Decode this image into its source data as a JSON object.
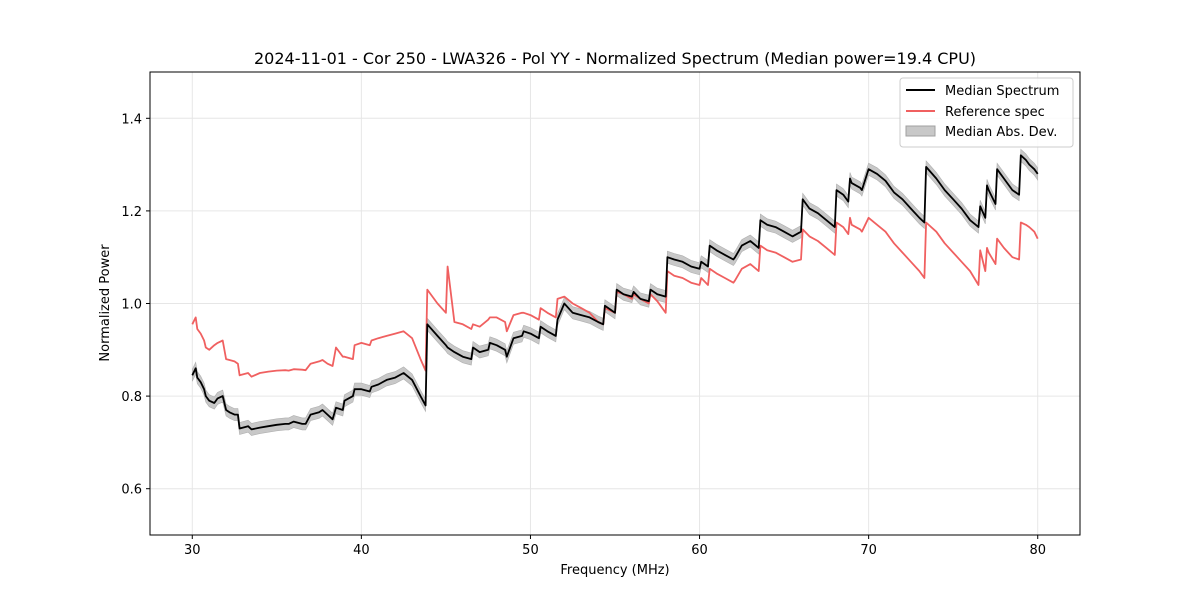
{
  "chart_data": {
    "type": "line",
    "title": "2024-11-01 - Cor 250 - LWA326 - Pol YY - Normalized Spectrum (Median power=19.4 CPU)",
    "xlabel": "Frequency (MHz)",
    "ylabel": "Normalized Power",
    "xlim": [
      27.5,
      82.5
    ],
    "ylim": [
      0.5,
      1.5
    ],
    "xticks": [
      30,
      40,
      50,
      60,
      70,
      80
    ],
    "yticks": [
      0.6,
      0.8,
      1.0,
      1.2,
      1.4
    ],
    "xtick_labels": [
      "30",
      "40",
      "50",
      "60",
      "70",
      "80"
    ],
    "ytick_labels": [
      "0.6",
      "0.8",
      "1.0",
      "1.2",
      "1.4"
    ],
    "grid": true,
    "legend_position": "top-right",
    "mad_halfwidth": 0.013,
    "colors": {
      "median": "#000000",
      "reference": "#f06060",
      "mad": "#c8c8c8",
      "grid": "#e6e6e6"
    },
    "series": [
      {
        "name": "Median Spectrum",
        "x": [
          30.0,
          30.2,
          30.3,
          30.5,
          30.7,
          30.8,
          31.0,
          31.3,
          31.5,
          31.8,
          32.0,
          32.2,
          32.5,
          32.7,
          32.8,
          33.3,
          33.5,
          34.0,
          34.5,
          35.0,
          35.5,
          35.7,
          36.0,
          36.5,
          36.7,
          37.0,
          37.5,
          37.7,
          38.0,
          38.3,
          38.5,
          38.9,
          39.0,
          39.5,
          39.6,
          40.0,
          40.5,
          40.6,
          41.0,
          41.5,
          42.0,
          42.5,
          43.0,
          43.5,
          43.8,
          43.9,
          44.5,
          45.0,
          45.1,
          45.5,
          46.0,
          46.5,
          46.6,
          47.0,
          47.5,
          47.6,
          48.0,
          48.5,
          48.6,
          49.0,
          49.5,
          49.6,
          50.0,
          50.5,
          50.6,
          51.0,
          51.5,
          51.6,
          52.0,
          52.5,
          53.0,
          53.5,
          54.0,
          54.3,
          54.4,
          55.0,
          55.1,
          55.5,
          56.0,
          56.1,
          56.5,
          57.0,
          57.1,
          57.5,
          58.0,
          58.1,
          58.5,
          59.0,
          59.5,
          60.0,
          60.1,
          60.5,
          60.6,
          61.0,
          61.5,
          62.0,
          62.1,
          62.5,
          63.0,
          63.5,
          63.6,
          64.0,
          64.5,
          65.0,
          65.5,
          66.0,
          66.1,
          66.5,
          67.0,
          67.5,
          68.0,
          68.1,
          68.5,
          68.8,
          68.9,
          69.0,
          69.5,
          69.6,
          70.0,
          70.5,
          71.0,
          71.5,
          72.0,
          72.5,
          73.0,
          73.3,
          73.4,
          74.0,
          74.5,
          75.0,
          75.5,
          76.0,
          76.5,
          76.6,
          76.9,
          77.0,
          77.1,
          77.5,
          77.6,
          78.0,
          78.5,
          78.9,
          79.0,
          79.3,
          79.5,
          79.8,
          80.0
        ],
        "y": [
          0.845,
          0.86,
          0.84,
          0.83,
          0.815,
          0.8,
          0.79,
          0.785,
          0.795,
          0.8,
          0.77,
          0.765,
          0.76,
          0.76,
          0.73,
          0.735,
          0.728,
          0.732,
          0.735,
          0.738,
          0.74,
          0.74,
          0.745,
          0.74,
          0.74,
          0.76,
          0.765,
          0.77,
          0.76,
          0.75,
          0.775,
          0.77,
          0.79,
          0.8,
          0.815,
          0.815,
          0.81,
          0.82,
          0.825,
          0.835,
          0.84,
          0.85,
          0.835,
          0.8,
          0.78,
          0.955,
          0.93,
          0.91,
          0.905,
          0.895,
          0.885,
          0.88,
          0.905,
          0.895,
          0.9,
          0.915,
          0.91,
          0.9,
          0.885,
          0.925,
          0.93,
          0.94,
          0.935,
          0.925,
          0.95,
          0.94,
          0.93,
          0.965,
          1.0,
          0.98,
          0.975,
          0.97,
          0.96,
          0.955,
          0.995,
          0.98,
          1.03,
          1.02,
          1.015,
          1.025,
          1.01,
          1.005,
          1.03,
          1.02,
          1.015,
          1.1,
          1.095,
          1.09,
          1.08,
          1.075,
          1.09,
          1.08,
          1.125,
          1.115,
          1.105,
          1.095,
          1.1,
          1.125,
          1.135,
          1.12,
          1.18,
          1.17,
          1.165,
          1.155,
          1.145,
          1.155,
          1.225,
          1.205,
          1.195,
          1.18,
          1.165,
          1.245,
          1.235,
          1.22,
          1.27,
          1.26,
          1.25,
          1.245,
          1.29,
          1.28,
          1.265,
          1.24,
          1.225,
          1.205,
          1.185,
          1.175,
          1.295,
          1.27,
          1.245,
          1.225,
          1.205,
          1.18,
          1.165,
          1.21,
          1.185,
          1.255,
          1.245,
          1.215,
          1.29,
          1.27,
          1.245,
          1.235,
          1.32,
          1.31,
          1.3,
          1.29,
          1.28
        ]
      },
      {
        "name": "Reference spec",
        "x": [
          30.0,
          30.2,
          30.3,
          30.5,
          30.7,
          30.8,
          31.0,
          31.3,
          31.5,
          31.8,
          32.0,
          32.2,
          32.5,
          32.7,
          32.8,
          33.3,
          33.5,
          34.0,
          34.5,
          35.0,
          35.5,
          35.7,
          36.0,
          36.5,
          36.7,
          37.0,
          37.5,
          37.7,
          38.0,
          38.3,
          38.5,
          38.9,
          39.0,
          39.5,
          39.6,
          40.0,
          40.5,
          40.6,
          41.0,
          41.5,
          42.0,
          42.5,
          43.0,
          43.5,
          43.8,
          43.9,
          44.5,
          45.0,
          45.1,
          45.5,
          46.0,
          46.5,
          46.6,
          47.0,
          47.5,
          47.6,
          48.0,
          48.5,
          48.6,
          49.0,
          49.5,
          49.6,
          50.0,
          50.5,
          50.6,
          51.0,
          51.5,
          51.6,
          52.0,
          52.5,
          53.0,
          53.5,
          54.0,
          54.3,
          54.4,
          55.0,
          55.1,
          55.5,
          56.0,
          56.1,
          56.5,
          57.0,
          57.1,
          57.5,
          58.0,
          58.1,
          58.5,
          59.0,
          59.5,
          60.0,
          60.1,
          60.5,
          60.6,
          61.0,
          61.5,
          62.0,
          62.1,
          62.5,
          63.0,
          63.5,
          63.6,
          64.0,
          64.5,
          65.0,
          65.5,
          66.0,
          66.1,
          66.5,
          67.0,
          67.5,
          68.0,
          68.1,
          68.5,
          68.8,
          68.9,
          69.0,
          69.5,
          69.6,
          70.0,
          70.5,
          71.0,
          71.5,
          72.0,
          72.5,
          73.0,
          73.3,
          73.4,
          74.0,
          74.5,
          75.0,
          75.5,
          76.0,
          76.5,
          76.6,
          76.9,
          77.0,
          77.1,
          77.5,
          77.6,
          78.0,
          78.5,
          78.9,
          79.0,
          79.3,
          79.5,
          79.8,
          80.0
        ],
        "y": [
          0.955,
          0.97,
          0.945,
          0.935,
          0.92,
          0.905,
          0.9,
          0.91,
          0.915,
          0.92,
          0.88,
          0.878,
          0.875,
          0.87,
          0.845,
          0.85,
          0.842,
          0.85,
          0.853,
          0.855,
          0.856,
          0.855,
          0.858,
          0.857,
          0.856,
          0.87,
          0.875,
          0.878,
          0.87,
          0.865,
          0.905,
          0.885,
          0.885,
          0.88,
          0.91,
          0.915,
          0.91,
          0.92,
          0.925,
          0.93,
          0.935,
          0.94,
          0.925,
          0.88,
          0.855,
          1.03,
          1.0,
          0.98,
          1.08,
          0.96,
          0.955,
          0.945,
          0.955,
          0.95,
          0.965,
          0.97,
          0.97,
          0.96,
          0.94,
          0.975,
          0.98,
          0.98,
          0.975,
          0.965,
          0.99,
          0.98,
          0.97,
          1.01,
          1.015,
          1.0,
          0.99,
          0.98,
          0.96,
          0.955,
          0.99,
          0.98,
          1.025,
          1.02,
          1.01,
          1.02,
          1.01,
          1.0,
          1.02,
          1.005,
          0.98,
          1.07,
          1.06,
          1.055,
          1.045,
          1.04,
          1.055,
          1.04,
          1.075,
          1.065,
          1.055,
          1.045,
          1.05,
          1.075,
          1.085,
          1.07,
          1.125,
          1.115,
          1.11,
          1.1,
          1.09,
          1.095,
          1.16,
          1.145,
          1.135,
          1.12,
          1.105,
          1.175,
          1.165,
          1.15,
          1.185,
          1.17,
          1.16,
          1.155,
          1.185,
          1.17,
          1.155,
          1.13,
          1.11,
          1.09,
          1.07,
          1.055,
          1.175,
          1.155,
          1.13,
          1.11,
          1.09,
          1.07,
          1.04,
          1.115,
          1.07,
          1.12,
          1.11,
          1.085,
          1.14,
          1.12,
          1.1,
          1.095,
          1.175,
          1.17,
          1.165,
          1.155,
          1.14
        ]
      }
    ],
    "legend": [
      "Median Spectrum",
      "Reference spec",
      "Median Abs. Dev."
    ]
  }
}
